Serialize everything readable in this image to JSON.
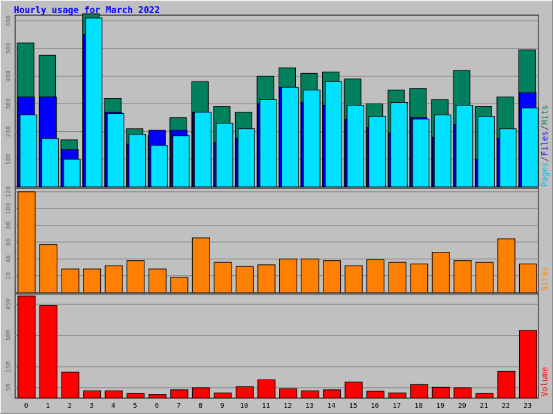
{
  "title": "Hourly usage for March 2022",
  "colors": {
    "background": "#c0c0c0",
    "hits": "#00805c",
    "files": "#0000ff",
    "pages": "#00e0ff",
    "sites": "#ff8000",
    "volume": "#ff0000",
    "title": "#0000ff",
    "axis_text": "#808080"
  },
  "chart_data": [
    {
      "type": "bar",
      "title": "Hourly usage for March 2022",
      "categories": [
        "0",
        "1",
        "2",
        "3",
        "4",
        "5",
        "6",
        "7",
        "8",
        "9",
        "10",
        "11",
        "12",
        "13",
        "14",
        "15",
        "16",
        "17",
        "18",
        "19",
        "20",
        "21",
        "22",
        "23"
      ],
      "ylim": [
        0,
        620
      ],
      "yticks": [
        "100",
        "200",
        "300",
        "400",
        "500",
        "600"
      ],
      "ylabel_parts": [
        "Pages",
        "/",
        "Files",
        "/",
        "Hits"
      ],
      "series": [
        {
          "name": "Hits",
          "values": [
            520,
            475,
            170,
            625,
            320,
            210,
            185,
            250,
            380,
            290,
            270,
            400,
            430,
            410,
            415,
            390,
            300,
            350,
            355,
            315,
            420,
            290,
            325,
            495
          ]
        },
        {
          "name": "Files",
          "values": [
            325,
            325,
            135,
            550,
            270,
            155,
            205,
            205,
            270,
            160,
            175,
            300,
            360,
            305,
            295,
            245,
            215,
            195,
            250,
            180,
            225,
            100,
            175,
            340
          ]
        },
        {
          "name": "Pages",
          "values": [
            260,
            175,
            100,
            610,
            265,
            190,
            150,
            185,
            270,
            230,
            210,
            315,
            360,
            350,
            380,
            295,
            255,
            305,
            245,
            260,
            295,
            255,
            210,
            285
          ]
        }
      ]
    },
    {
      "type": "bar",
      "ylim": [
        0,
        124
      ],
      "yticks": [
        "20",
        "40",
        "60",
        "80",
        "100",
        "120"
      ],
      "ylabel": "Sites",
      "series": [
        {
          "name": "Sites",
          "values": [
            120,
            57,
            28,
            28,
            32,
            38,
            28,
            18,
            65,
            36,
            31,
            33,
            40,
            40,
            38,
            32,
            39,
            36,
            34,
            48,
            38,
            36,
            64,
            34
          ]
        }
      ]
    },
    {
      "type": "bar",
      "ylim": [
        0,
        50
      ],
      "yticks": [
        "5M",
        "15M",
        "30M",
        "45M"
      ],
      "ytick_values": [
        5,
        15,
        30,
        45
      ],
      "ylabel": "Volume",
      "series": [
        {
          "name": "Volume",
          "values": [
            49,
            44.5,
            12.5,
            3.5,
            3.5,
            2.2,
            1.8,
            4,
            5,
            2.5,
            5.5,
            8.8,
            4.5,
            3.5,
            4,
            7.7,
            3.3,
            2.5,
            6.5,
            5.2,
            5,
            2.2,
            12.8,
            32.5
          ]
        }
      ]
    }
  ]
}
